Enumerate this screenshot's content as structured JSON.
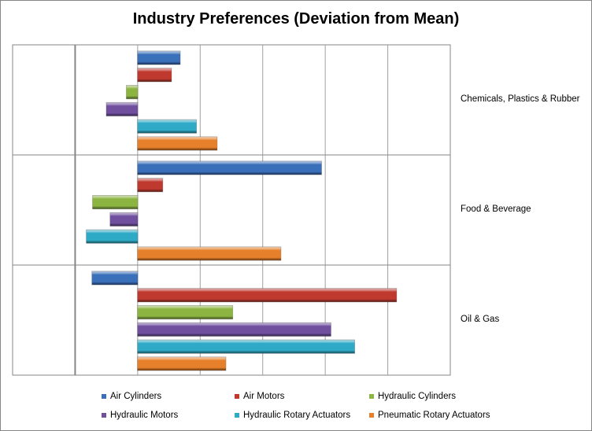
{
  "chart_data": {
    "type": "bar",
    "orientation": "horizontal",
    "title": "Industry Preferences (Deviation from Mean)",
    "xlabel": "",
    "ylabel": "",
    "xlim": [
      -2,
      5
    ],
    "grid": true,
    "legend_position": "bottom",
    "categories": [
      "Chemicals, Plastics & Rubber",
      "Food & Beverage",
      "Oil & Gas"
    ],
    "series": [
      {
        "name": "Air Cylinders",
        "color": "#3a6fba",
        "values": [
          0.68,
          2.94,
          -0.73
        ]
      },
      {
        "name": "Air Motors",
        "color": "#c0392f",
        "values": [
          0.54,
          0.4,
          4.14
        ]
      },
      {
        "name": "Hydraulic Cylinders",
        "color": "#8cb441",
        "values": [
          -0.18,
          -0.72,
          1.52
        ]
      },
      {
        "name": "Hydraulic Motors",
        "color": "#6f4f9e",
        "values": [
          -0.5,
          -0.44,
          3.09
        ]
      },
      {
        "name": "Hydraulic Rotary Actuators",
        "color": "#2eaac6",
        "values": [
          0.94,
          -0.82,
          3.47
        ]
      },
      {
        "name": "Pneumatic Rotary Actuators",
        "color": "#e6802a",
        "values": [
          1.27,
          2.29,
          1.41
        ]
      }
    ]
  }
}
